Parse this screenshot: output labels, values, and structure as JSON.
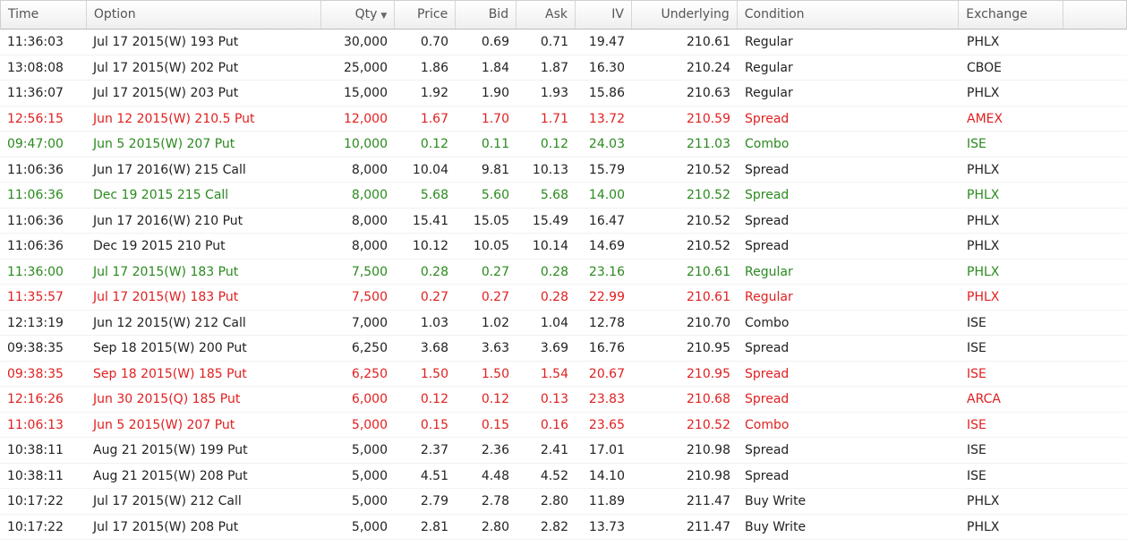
{
  "columns": {
    "time": "Time",
    "option": "Option",
    "qty": "Qty",
    "price": "Price",
    "bid": "Bid",
    "ask": "Ask",
    "iv": "IV",
    "underlying": "Underlying",
    "condition": "Condition",
    "exchange": "Exchange"
  },
  "sort_icon": "caret-down-icon",
  "colors": {
    "red": "#e02020",
    "green": "#2a8a1e",
    "normal": "#222222"
  },
  "rows": [
    {
      "time": "11:36:03",
      "option": "Jul 17 2015(W) 193 Put",
      "qty": "30,000",
      "price": "0.70",
      "bid": "0.69",
      "ask": "0.71",
      "iv": "19.47",
      "underlying": "210.61",
      "condition": "Regular",
      "exchange": "PHLX",
      "color": "normal"
    },
    {
      "time": "13:08:08",
      "option": "Jul 17 2015(W) 202 Put",
      "qty": "25,000",
      "price": "1.86",
      "bid": "1.84",
      "ask": "1.87",
      "iv": "16.30",
      "underlying": "210.24",
      "condition": "Regular",
      "exchange": "CBOE",
      "color": "normal"
    },
    {
      "time": "11:36:07",
      "option": "Jul 17 2015(W) 203 Put",
      "qty": "15,000",
      "price": "1.92",
      "bid": "1.90",
      "ask": "1.93",
      "iv": "15.86",
      "underlying": "210.63",
      "condition": "Regular",
      "exchange": "PHLX",
      "color": "normal"
    },
    {
      "time": "12:56:15",
      "option": "Jun 12 2015(W) 210.5 Put",
      "qty": "12,000",
      "price": "1.67",
      "bid": "1.70",
      "ask": "1.71",
      "iv": "13.72",
      "underlying": "210.59",
      "condition": "Spread",
      "exchange": "AMEX",
      "color": "red"
    },
    {
      "time": "09:47:00",
      "option": "Jun 5 2015(W) 207 Put",
      "qty": "10,000",
      "price": "0.12",
      "bid": "0.11",
      "ask": "0.12",
      "iv": "24.03",
      "underlying": "211.03",
      "condition": "Combo",
      "exchange": "ISE",
      "color": "green"
    },
    {
      "time": "11:06:36",
      "option": "Jun 17 2016(W) 215 Call",
      "qty": "8,000",
      "price": "10.04",
      "bid": "9.81",
      "ask": "10.13",
      "iv": "15.79",
      "underlying": "210.52",
      "condition": "Spread",
      "exchange": "PHLX",
      "color": "normal"
    },
    {
      "time": "11:06:36",
      "option": "Dec 19 2015 215 Call",
      "qty": "8,000",
      "price": "5.68",
      "bid": "5.60",
      "ask": "5.68",
      "iv": "14.00",
      "underlying": "210.52",
      "condition": "Spread",
      "exchange": "PHLX",
      "color": "green"
    },
    {
      "time": "11:06:36",
      "option": "Jun 17 2016(W) 210 Put",
      "qty": "8,000",
      "price": "15.41",
      "bid": "15.05",
      "ask": "15.49",
      "iv": "16.47",
      "underlying": "210.52",
      "condition": "Spread",
      "exchange": "PHLX",
      "color": "normal"
    },
    {
      "time": "11:06:36",
      "option": "Dec 19 2015 210 Put",
      "qty": "8,000",
      "price": "10.12",
      "bid": "10.05",
      "ask": "10.14",
      "iv": "14.69",
      "underlying": "210.52",
      "condition": "Spread",
      "exchange": "PHLX",
      "color": "normal"
    },
    {
      "time": "11:36:00",
      "option": "Jul 17 2015(W) 183 Put",
      "qty": "7,500",
      "price": "0.28",
      "bid": "0.27",
      "ask": "0.28",
      "iv": "23.16",
      "underlying": "210.61",
      "condition": "Regular",
      "exchange": "PHLX",
      "color": "green"
    },
    {
      "time": "11:35:57",
      "option": "Jul 17 2015(W) 183 Put",
      "qty": "7,500",
      "price": "0.27",
      "bid": "0.27",
      "ask": "0.28",
      "iv": "22.99",
      "underlying": "210.61",
      "condition": "Regular",
      "exchange": "PHLX",
      "color": "red"
    },
    {
      "time": "12:13:19",
      "option": "Jun 12 2015(W) 212 Call",
      "qty": "7,000",
      "price": "1.03",
      "bid": "1.02",
      "ask": "1.04",
      "iv": "12.78",
      "underlying": "210.70",
      "condition": "Combo",
      "exchange": "ISE",
      "color": "normal"
    },
    {
      "time": "09:38:35",
      "option": "Sep 18 2015(W) 200 Put",
      "qty": "6,250",
      "price": "3.68",
      "bid": "3.63",
      "ask": "3.69",
      "iv": "16.76",
      "underlying": "210.95",
      "condition": "Spread",
      "exchange": "ISE",
      "color": "normal"
    },
    {
      "time": "09:38:35",
      "option": "Sep 18 2015(W) 185 Put",
      "qty": "6,250",
      "price": "1.50",
      "bid": "1.50",
      "ask": "1.54",
      "iv": "20.67",
      "underlying": "210.95",
      "condition": "Spread",
      "exchange": "ISE",
      "color": "red"
    },
    {
      "time": "12:16:26",
      "option": "Jun 30 2015(Q) 185 Put",
      "qty": "6,000",
      "price": "0.12",
      "bid": "0.12",
      "ask": "0.13",
      "iv": "23.83",
      "underlying": "210.68",
      "condition": "Spread",
      "exchange": "ARCA",
      "color": "red"
    },
    {
      "time": "11:06:13",
      "option": "Jun 5 2015(W) 207 Put",
      "qty": "5,000",
      "price": "0.15",
      "bid": "0.15",
      "ask": "0.16",
      "iv": "23.65",
      "underlying": "210.52",
      "condition": "Combo",
      "exchange": "ISE",
      "color": "red"
    },
    {
      "time": "10:38:11",
      "option": "Aug 21 2015(W) 199 Put",
      "qty": "5,000",
      "price": "2.37",
      "bid": "2.36",
      "ask": "2.41",
      "iv": "17.01",
      "underlying": "210.98",
      "condition": "Spread",
      "exchange": "ISE",
      "color": "normal"
    },
    {
      "time": "10:38:11",
      "option": "Aug 21 2015(W) 208 Put",
      "qty": "5,000",
      "price": "4.51",
      "bid": "4.48",
      "ask": "4.52",
      "iv": "14.10",
      "underlying": "210.98",
      "condition": "Spread",
      "exchange": "ISE",
      "color": "normal"
    },
    {
      "time": "10:17:22",
      "option": "Jul 17 2015(W) 212 Call",
      "qty": "5,000",
      "price": "2.79",
      "bid": "2.78",
      "ask": "2.80",
      "iv": "11.89",
      "underlying": "211.47",
      "condition": "Buy Write",
      "exchange": "PHLX",
      "color": "normal"
    },
    {
      "time": "10:17:22",
      "option": "Jul 17 2015(W) 208 Put",
      "qty": "5,000",
      "price": "2.81",
      "bid": "2.80",
      "ask": "2.82",
      "iv": "13.73",
      "underlying": "211.47",
      "condition": "Buy Write",
      "exchange": "PHLX",
      "color": "normal"
    }
  ]
}
